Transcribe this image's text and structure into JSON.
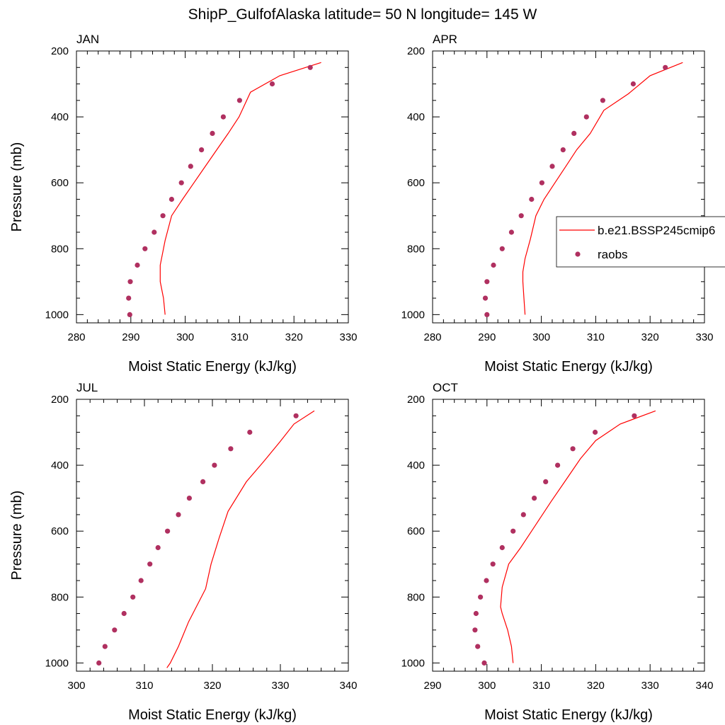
{
  "title": "ShipP_GulfofAlaska  latitude= 50 N longitude= 145 W",
  "colors": {
    "model": "#ff0000",
    "obs": "#b03060",
    "frame": "#000000"
  },
  "legend": {
    "model_label": "b.e21.BSSP245cmip6",
    "obs_label": "raobs",
    "panel": "APR"
  },
  "chart_data": [
    {
      "type": "line",
      "panel": "JAN",
      "xlabel": "Moist Static Energy (kJ/kg)",
      "ylabel": "Pressure (mb)",
      "xlim": [
        280,
        330
      ],
      "xticks": [
        280,
        290,
        300,
        310,
        320,
        330
      ],
      "ylim": [
        1025,
        200
      ],
      "yticks": [
        200,
        400,
        600,
        800,
        1000
      ],
      "series": [
        {
          "name": "b.e21.BSSP245cmip6",
          "kind": "line",
          "x": [
            296.3,
            296.0,
            295.4,
            295.4,
            296.3,
            297.5,
            299.5,
            301.6,
            303.7,
            305.8,
            307.9,
            309.9,
            312.0,
            317.4,
            325.0
          ],
          "y": [
            1000,
            950,
            900,
            850,
            775,
            700,
            650,
            600,
            550,
            500,
            450,
            400,
            325,
            275,
            235
          ]
        },
        {
          "name": "raobs",
          "kind": "scatter",
          "x": [
            289.8,
            289.6,
            289.9,
            291.2,
            292.6,
            294.3,
            295.9,
            297.5,
            299.3,
            301.0,
            303.0,
            305.0,
            307.0,
            310.0,
            316.0,
            323.0
          ],
          "y": [
            1000,
            950,
            900,
            850,
            800,
            750,
            700,
            650,
            600,
            550,
            500,
            450,
            400,
            350,
            300,
            250
          ]
        }
      ]
    },
    {
      "type": "line",
      "panel": "APR",
      "xlabel": "Moist Static Energy (kJ/kg)",
      "ylabel": "",
      "xlim": [
        280,
        330
      ],
      "xticks": [
        280,
        290,
        300,
        310,
        320,
        330
      ],
      "ylim": [
        1025,
        200
      ],
      "yticks": [
        200,
        400,
        600,
        800,
        1000
      ],
      "series": [
        {
          "name": "b.e21.BSSP245cmip6",
          "kind": "line",
          "x": [
            297.0,
            296.8,
            296.6,
            296.6,
            297.0,
            298.0,
            299.0,
            300.5,
            302.5,
            304.5,
            306.5,
            309.0,
            311.5,
            316.0,
            320.0,
            326.0
          ],
          "y": [
            1000,
            950,
            900,
            870,
            830,
            770,
            700,
            650,
            600,
            550,
            500,
            450,
            380,
            330,
            275,
            235
          ]
        },
        {
          "name": "raobs",
          "kind": "scatter",
          "x": [
            290.0,
            289.7,
            290.0,
            291.2,
            292.8,
            294.5,
            296.3,
            298.2,
            300.1,
            302.0,
            304.0,
            306.0,
            308.3,
            311.3,
            316.9,
            322.8
          ],
          "y": [
            1000,
            950,
            900,
            850,
            800,
            750,
            700,
            650,
            600,
            550,
            500,
            450,
            400,
            350,
            300,
            250
          ]
        }
      ]
    },
    {
      "type": "line",
      "panel": "JUL",
      "xlabel": "Moist Static Energy (kJ/kg)",
      "ylabel": "Pressure (mb)",
      "xlim": [
        300,
        340
      ],
      "xticks": [
        300,
        310,
        320,
        330,
        340
      ],
      "ylim": [
        1025,
        200
      ],
      "yticks": [
        200,
        400,
        600,
        800,
        1000
      ],
      "series": [
        {
          "name": "b.e21.BSSP245cmip6",
          "kind": "line",
          "x": [
            313.3,
            313.8,
            315.0,
            316.5,
            319.0,
            319.8,
            321.0,
            322.3,
            325.0,
            327.5,
            329.9,
            332.0,
            335.0
          ],
          "y": [
            1015,
            1000,
            950,
            875,
            775,
            700,
            620,
            540,
            450,
            390,
            330,
            275,
            235
          ]
        },
        {
          "name": "raobs",
          "kind": "scatter",
          "x": [
            303.3,
            304.2,
            305.6,
            307.0,
            308.3,
            309.5,
            310.8,
            312.0,
            313.4,
            315.0,
            316.6,
            318.6,
            320.3,
            322.7,
            325.5,
            332.3
          ],
          "y": [
            1000,
            950,
            900,
            850,
            800,
            750,
            700,
            650,
            600,
            550,
            500,
            450,
            400,
            350,
            300,
            250
          ]
        }
      ]
    },
    {
      "type": "line",
      "panel": "OCT",
      "xlabel": "Moist Static Energy (kJ/kg)",
      "ylabel": "",
      "xlim": [
        290,
        340
      ],
      "xticks": [
        290,
        300,
        310,
        320,
        330,
        340
      ],
      "ylim": [
        1025,
        200
      ],
      "yticks": [
        200,
        400,
        600,
        800,
        1000
      ],
      "series": [
        {
          "name": "b.e21.BSSP245cmip6",
          "kind": "line",
          "x": [
            304.8,
            304.5,
            303.8,
            302.8,
            302.5,
            302.8,
            304.0,
            306.2,
            309.0,
            311.8,
            314.3,
            317.2,
            320.0,
            324.5,
            331.0
          ],
          "y": [
            1000,
            950,
            900,
            850,
            830,
            770,
            700,
            650,
            580,
            510,
            450,
            380,
            325,
            275,
            235
          ]
        },
        {
          "name": "raobs",
          "kind": "scatter",
          "x": [
            299.5,
            298.3,
            297.8,
            298.0,
            298.8,
            299.9,
            301.1,
            302.8,
            304.8,
            306.7,
            308.7,
            310.8,
            313.0,
            315.8,
            319.9,
            327.1
          ],
          "y": [
            1000,
            950,
            900,
            850,
            800,
            750,
            700,
            650,
            600,
            550,
            500,
            450,
            400,
            350,
            300,
            250
          ]
        }
      ]
    }
  ]
}
